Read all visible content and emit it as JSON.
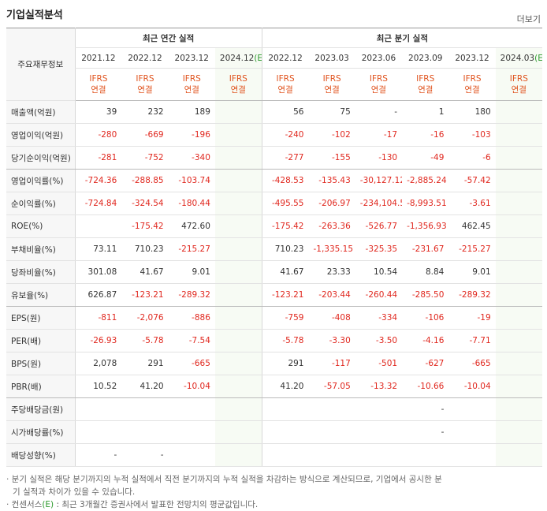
{
  "header": {
    "title": "기업실적분석",
    "more": "더보기"
  },
  "table": {
    "corner": "주요재무정보",
    "groups": [
      {
        "label": "최근 연간 실적",
        "span": 4
      },
      {
        "label": "최근 분기 실적",
        "span": 6
      }
    ],
    "columns": [
      {
        "period": "2021.12",
        "est": null,
        "std": "IFRS",
        "basis": "연결"
      },
      {
        "period": "2022.12",
        "est": null,
        "std": "IFRS",
        "basis": "연결"
      },
      {
        "period": "2023.12",
        "est": null,
        "std": "IFRS",
        "basis": "연결"
      },
      {
        "period": "2024.12",
        "est": "(E)",
        "std": "IFRS",
        "basis": "연결"
      },
      {
        "period": "2022.12",
        "est": null,
        "std": "IFRS",
        "basis": "연결"
      },
      {
        "period": "2023.03",
        "est": null,
        "std": "IFRS",
        "basis": "연결"
      },
      {
        "period": "2023.06",
        "est": null,
        "std": "IFRS",
        "basis": "연결"
      },
      {
        "period": "2023.09",
        "est": null,
        "std": "IFRS",
        "basis": "연결"
      },
      {
        "period": "2023.12",
        "est": null,
        "std": "IFRS",
        "basis": "연결"
      },
      {
        "period": "2024.03",
        "est": "(E)",
        "std": "IFRS",
        "basis": "연결"
      }
    ],
    "rows": [
      {
        "label": "매출액(억원)",
        "cells": [
          "39",
          "232",
          "189",
          null,
          "56",
          "75",
          "-",
          "1",
          "180",
          null
        ]
      },
      {
        "label": "영업이익(억원)",
        "cells": [
          "-280",
          "-669",
          "-196",
          null,
          "-240",
          "-102",
          "-17",
          "-16",
          "-103",
          null
        ]
      },
      {
        "label": "당기순이익(억원)",
        "cells": [
          "-281",
          "-752",
          "-340",
          null,
          "-277",
          "-155",
          "-130",
          "-49",
          "-6",
          null
        ],
        "groupEnd": true
      },
      {
        "label": "영업이익률(%)",
        "cells": [
          "-724.36",
          "-288.85",
          "-103.74",
          null,
          "-428.53",
          "-135.43",
          "-30,127.12",
          "-2,885.24",
          "-57.42",
          null
        ]
      },
      {
        "label": "순이익률(%)",
        "cells": [
          "-724.84",
          "-324.54",
          "-180.44",
          null,
          "-495.55",
          "-206.97",
          "-234,104.50",
          "-8,993.51",
          "-3.61",
          null
        ]
      },
      {
        "label": "ROE(%)",
        "cells": [
          null,
          "-175.42",
          "472.60",
          null,
          "-175.42",
          "-263.36",
          "-526.77",
          "-1,356.93",
          "462.45",
          null
        ]
      },
      {
        "label": "부채비율(%)",
        "cells": [
          "73.11",
          "710.23",
          "-215.27",
          null,
          "710.23",
          "-1,335.15",
          "-325.35",
          "-231.67",
          "-215.27",
          null
        ]
      },
      {
        "label": "당좌비율(%)",
        "cells": [
          "301.08",
          "41.67",
          "9.01",
          null,
          "41.67",
          "23.33",
          "10.54",
          "8.84",
          "9.01",
          null
        ]
      },
      {
        "label": "유보율(%)",
        "cells": [
          "626.87",
          "-123.21",
          "-289.32",
          null,
          "-123.21",
          "-203.44",
          "-260.44",
          "-285.50",
          "-289.32",
          null
        ],
        "groupEnd": true
      },
      {
        "label": "EPS(원)",
        "cells": [
          "-811",
          "-2,076",
          "-886",
          null,
          "-759",
          "-408",
          "-334",
          "-106",
          "-19",
          null
        ]
      },
      {
        "label": "PER(배)",
        "cells": [
          "-26.93",
          "-5.78",
          "-7.54",
          null,
          "-5.78",
          "-3.30",
          "-3.50",
          "-4.16",
          "-7.71",
          null
        ]
      },
      {
        "label": "BPS(원)",
        "cells": [
          "2,078",
          "291",
          "-665",
          null,
          "291",
          "-117",
          "-501",
          "-627",
          "-665",
          null
        ]
      },
      {
        "label": "PBR(배)",
        "cells": [
          "10.52",
          "41.20",
          "-10.04",
          null,
          "41.20",
          "-57.05",
          "-13.32",
          "-10.66",
          "-10.04",
          null
        ],
        "groupEnd": true
      },
      {
        "label": "주당배당금(원)",
        "cells": [
          null,
          null,
          null,
          null,
          null,
          null,
          null,
          "-",
          null,
          null
        ]
      },
      {
        "label": "시가배당률(%)",
        "cells": [
          null,
          null,
          null,
          null,
          null,
          null,
          null,
          "-",
          null,
          null
        ]
      },
      {
        "label": "배당성향(%)",
        "cells": [
          "-",
          "-",
          null,
          null,
          null,
          null,
          null,
          null,
          null,
          null
        ]
      }
    ]
  },
  "notes": [
    {
      "text": "· 분기 실적은 해당 분기까지의 누적 실적에서 직전 분기까지의 누적 실적을 차감하는 방식으로 계산되므로, 기업에서 공시한 분기 실적과 차이가 있을 수 있습니다."
    },
    {
      "pre": "· 컨센서스",
      "est": "(E)",
      "text": " : 최근 3개월간 증권사에서 발표한 전망치의 평균값입니다."
    }
  ]
}
